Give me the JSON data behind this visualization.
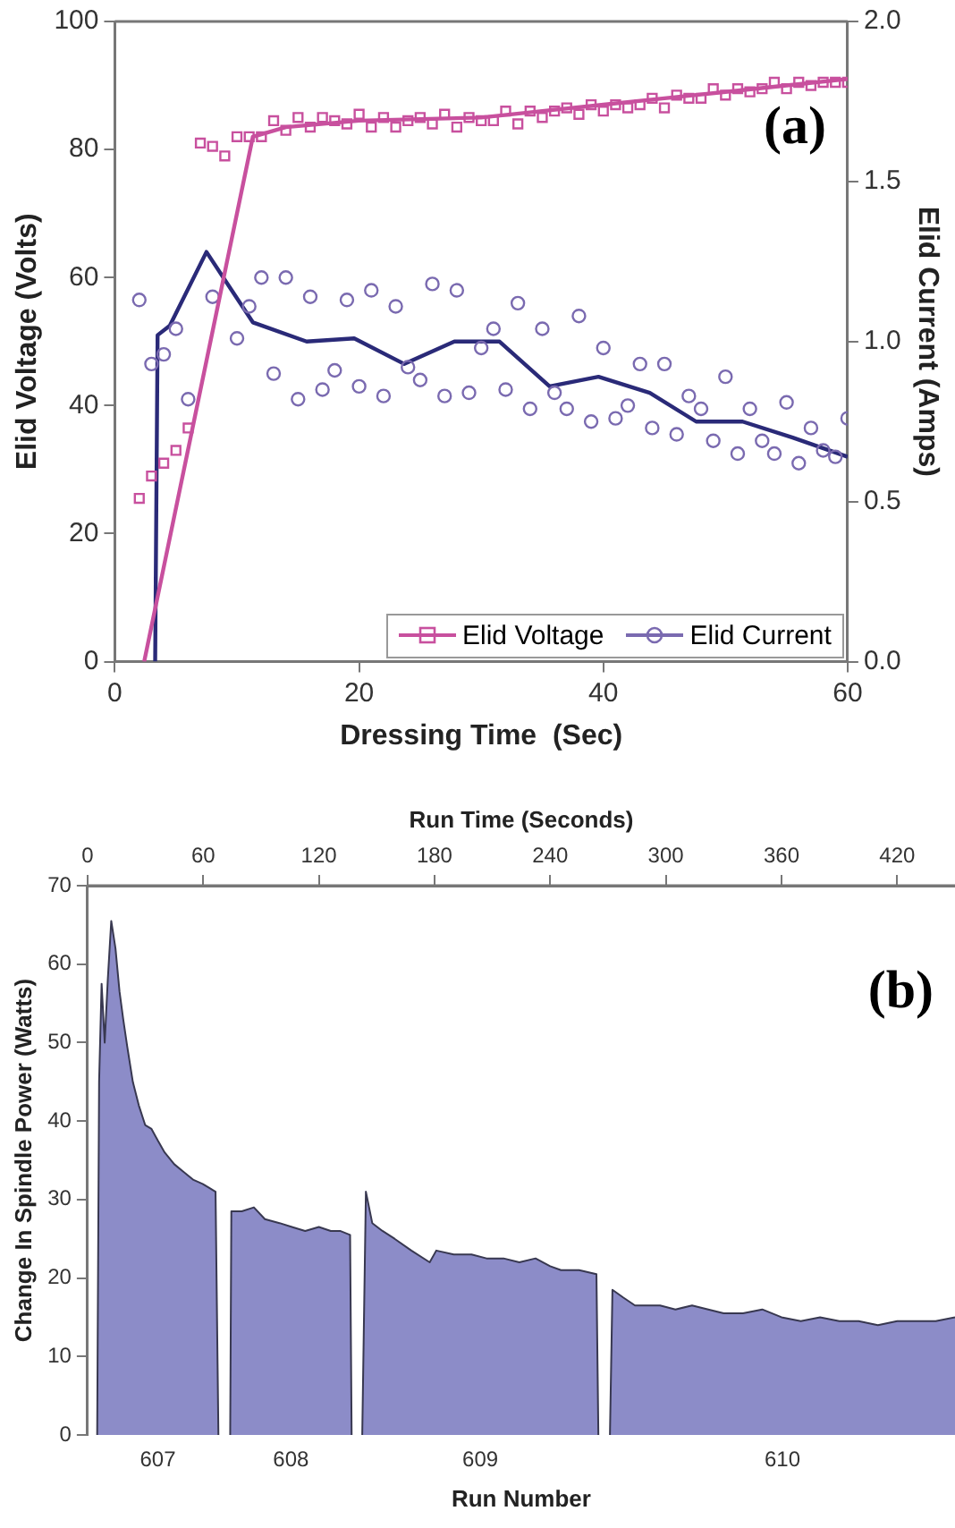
{
  "chart_data": [
    {
      "type": "scatter",
      "xlabel": "Dressing Time  (Sec)",
      "ylabel": "Elid Voltage (Volts)",
      "y2label": "Elid Current (Amps)",
      "xlim": [
        0,
        60
      ],
      "xticks": [
        0,
        20,
        40,
        60
      ],
      "ylim": [
        0,
        100
      ],
      "yticks": [
        0,
        20,
        40,
        60,
        80,
        100
      ],
      "y2lim": [
        0,
        2
      ],
      "y2ticks": [
        {
          "value": 0,
          "label": "0.0"
        },
        {
          "value": 0.5,
          "label": "0.5"
        },
        {
          "value": 1,
          "label": "1.0"
        },
        {
          "value": 1.5,
          "label": "1.5"
        },
        {
          "value": 2,
          "label": "2.0"
        }
      ],
      "grid": false,
      "legend": "bottom right",
      "annotations": [
        "(a)"
      ],
      "series": [
        {
          "name": "Elid Voltage",
          "type": "scatter",
          "marker": "square",
          "color": "#c8509e",
          "x": [
            2,
            3,
            4,
            5,
            6,
            7,
            8,
            9,
            10,
            11,
            12,
            13,
            14,
            15,
            16,
            17,
            18,
            19,
            20,
            21,
            22,
            23,
            24,
            25,
            26,
            27,
            28,
            29,
            30,
            31,
            32,
            33,
            34,
            35,
            36,
            37,
            38,
            39,
            40,
            41,
            42,
            43,
            44,
            45,
            46,
            47,
            48,
            49,
            50,
            51,
            52,
            53,
            54,
            55,
            56,
            57,
            58,
            59,
            60
          ],
          "values": [
            25.5,
            29,
            31,
            33,
            36.5,
            81,
            80.5,
            79,
            82,
            82,
            82,
            84.5,
            83,
            85,
            83.5,
            85,
            84.5,
            84,
            85.5,
            83.5,
            85,
            83.5,
            84.5,
            85,
            84,
            85.5,
            83.5,
            85,
            84.5,
            84.5,
            86,
            84,
            86,
            85,
            86,
            86.5,
            85.5,
            87,
            86,
            87,
            86.5,
            87,
            88,
            86.5,
            88.5,
            88,
            88,
            89.5,
            88.5,
            89.5,
            89,
            89.5,
            90.5,
            89.5,
            90.5,
            90,
            90.5,
            90.5,
            90.5
          ]
        },
        {
          "type": "line",
          "marker": "none",
          "color": "#c8509e",
          "x": [
            2.4,
            11.3,
            14,
            20,
            30,
            35,
            40,
            45,
            50,
            55,
            60
          ],
          "values": [
            0,
            82,
            83.5,
            84.5,
            85,
            86,
            87,
            88,
            89,
            90,
            91
          ]
        },
        {
          "name": "Elid Current",
          "type": "scatter",
          "marker": "circle",
          "axis": "y2",
          "color": "#7a6ab0",
          "x": [
            2,
            3,
            4,
            5,
            6,
            8,
            10,
            11,
            12,
            13,
            14,
            15,
            16,
            17,
            18,
            19,
            20,
            21,
            22,
            23,
            24,
            25,
            26,
            27,
            28,
            29,
            30,
            31,
            32,
            33,
            34,
            35,
            36,
            37,
            38,
            39,
            40,
            41,
            42,
            43,
            44,
            45,
            46,
            47,
            48,
            49,
            50,
            51,
            52,
            53,
            54,
            55,
            56,
            57,
            58,
            59,
            60
          ],
          "values": [
            1.13,
            0.93,
            0.96,
            1.04,
            0.82,
            1.14,
            1.01,
            1.11,
            1.2,
            0.9,
            1.2,
            0.82,
            1.14,
            0.85,
            0.91,
            1.13,
            0.86,
            1.16,
            0.83,
            1.11,
            0.92,
            0.88,
            1.18,
            0.83,
            1.16,
            0.84,
            0.98,
            1.04,
            0.85,
            1.12,
            0.79,
            1.04,
            0.84,
            0.79,
            1.08,
            0.75,
            0.98,
            0.76,
            0.8,
            0.93,
            0.73,
            0.93,
            0.71,
            0.83,
            0.79,
            0.69,
            0.89,
            0.65,
            0.79,
            0.69,
            0.65,
            0.81,
            0.62,
            0.73,
            0.66,
            0.64,
            0.76
          ]
        },
        {
          "type": "line",
          "marker": "none",
          "axis": "y2",
          "color": "#2a2a78",
          "x": [
            3.3,
            3.5,
            4.5,
            7.5,
            11.3,
            15.7,
            19.6,
            23.7,
            27.8,
            31.5,
            35.6,
            39.6,
            43.8,
            47.6,
            51.4,
            55.5,
            60
          ],
          "values": [
            0,
            1.02,
            1.05,
            1.28,
            1.06,
            1,
            1.01,
            0.93,
            1,
            1,
            0.86,
            0.89,
            0.84,
            0.75,
            0.75,
            0.7,
            0.64
          ]
        }
      ]
    },
    {
      "type": "area",
      "xlabel": "Run Time (Seconds)",
      "x2label": "Run Number",
      "ylabel": "Change In Spindle Power (Watts)",
      "xlim": [
        0,
        450
      ],
      "xticks": [
        0,
        60,
        120,
        180,
        240,
        300,
        360,
        420
      ],
      "ylim": [
        0,
        70
      ],
      "yticks": [
        0,
        10,
        20,
        30,
        40,
        50,
        60,
        70
      ],
      "grid": false,
      "annotations": [
        "(b)",
        "607",
        "608",
        "609",
        "610"
      ],
      "series": [
        {
          "color": "#8c8cc8",
          "x": [
            5,
            6,
            7.3,
            8.9,
            10.5,
            12.3,
            14.5,
            16.6,
            18.5,
            20.6,
            23.5,
            26.6,
            29.9,
            33.2,
            36.5,
            40,
            45,
            50,
            55,
            59.7,
            63,
            66.4,
            67.9,
            70,
            74,
            74.6,
            80,
            86.3,
            92,
            99.6,
            106,
            112.9,
            120,
            126.2,
            131,
            136.2,
            137,
            140,
            142.5,
            144.4,
            147.7,
            153,
            159.3,
            168,
            177.5,
            180.9,
            190,
            199.2,
            207,
            215.8,
            224,
            232.4,
            240,
            245.6,
            255,
            264,
            265,
            268,
            271,
            272.3,
            278,
            284,
            290,
            297,
            305,
            313.6,
            322,
            330,
            340,
            350,
            360,
            370,
            380,
            390,
            400,
            410,
            420,
            430,
            440,
            450
          ],
          "values": [
            0,
            45,
            57.5,
            50,
            58,
            65.5,
            62,
            56.5,
            53,
            49.5,
            45,
            42,
            39.5,
            39,
            37.5,
            36,
            34.5,
            33.5,
            32.5,
            32,
            31.5,
            31,
            0,
            null,
            0,
            28.5,
            28.5,
            29,
            27.5,
            27,
            26.5,
            26,
            26.5,
            26,
            26,
            25.5,
            0,
            null,
            0,
            31,
            27,
            26,
            25,
            23.5,
            22,
            23.5,
            23,
            23,
            22.5,
            22.5,
            22,
            22.5,
            21.5,
            21,
            21,
            20.5,
            0,
            null,
            0,
            18.5,
            17.5,
            16.5,
            16.5,
            16.5,
            16,
            16.5,
            16,
            15.5,
            15.5,
            16,
            15,
            14.5,
            15,
            14.5,
            14.5,
            14,
            14.5,
            14.5,
            14.5,
            15
          ]
        }
      ]
    }
  ]
}
